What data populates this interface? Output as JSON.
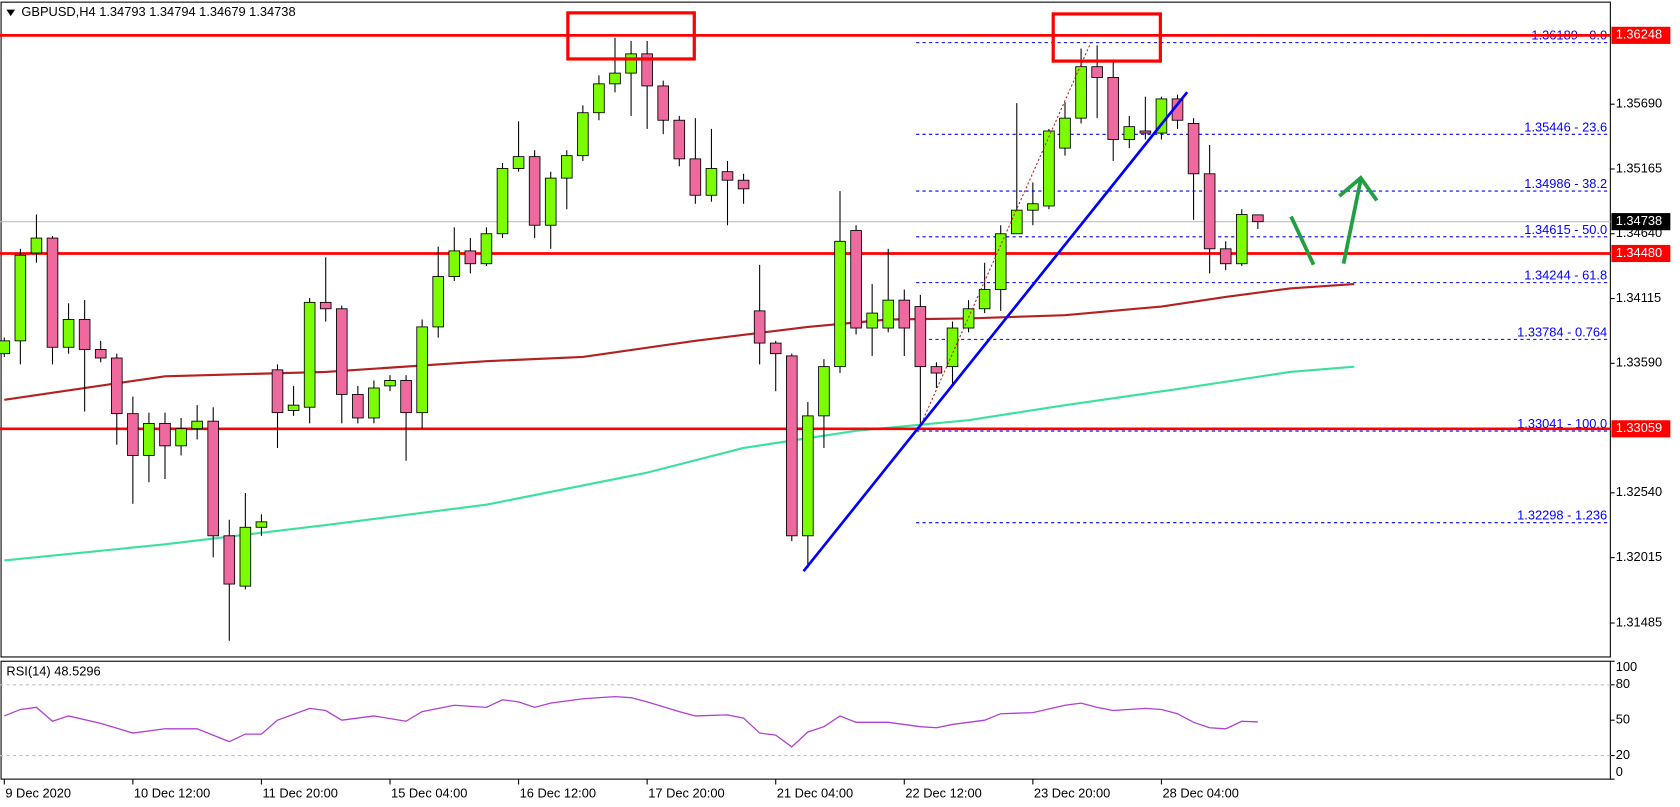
{
  "header": "GBPUSD,H4  1.34793 1.34794 1.34679 1.34738",
  "chart_data": [
    {
      "type": "candlestick",
      "categories": [
        "9 Dec 2020",
        null,
        null,
        null,
        null,
        null,
        null,
        null,
        "10 Dec 12:00",
        null,
        null,
        null,
        null,
        null,
        null,
        null,
        "11 Dec 20:00",
        null,
        null,
        null,
        null,
        null,
        null,
        null,
        "15 Dec 04:00",
        null,
        null,
        null,
        null,
        null,
        null,
        null,
        "16 Dec 12:00",
        null,
        null,
        null,
        null,
        null,
        null,
        null,
        "17 Dec 20:00",
        null,
        null,
        null,
        null,
        null,
        null,
        null,
        "21 Dec 04:00",
        null,
        null,
        null,
        null,
        null,
        null,
        null,
        "22 Dec 12:00",
        null,
        null,
        null,
        null,
        null,
        null,
        null,
        "23 Dec 20:00",
        null,
        null,
        null,
        null,
        null,
        null,
        null,
        "28 Dec 04:00",
        null,
        null,
        null,
        null,
        null,
        null
      ],
      "open": [
        1.33668,
        1.33772,
        1.34484,
        1.34605,
        1.3372,
        1.33945,
        1.33702,
        1.33633,
        1.33182,
        1.32843,
        1.33103,
        1.32921,
        1.3306,
        1.33121,
        1.32192,
        1.31784,
        1.32261,
        1.33537,
        1.33208,
        1.33234,
        1.34084,
        1.34032,
        1.33338,
        1.33147,
        1.33407,
        1.33451,
        1.3319,
        1.33885,
        1.34293,
        1.34501,
        1.34397,
        1.3464,
        1.35169,
        1.35265,
        1.34709,
        1.35091,
        1.35273,
        1.35621,
        1.35855,
        1.35942,
        1.36098,
        1.35838,
        1.3556,
        1.35247,
        1.34952,
        1.35143,
        1.35074,
        1.34015,
        1.33754,
        1.3365,
        1.32192,
        1.33164,
        1.33563,
        1.34666,
        1.33876,
        1.33876,
        1.34102,
        1.3405,
        1.33563,
        1.33563,
        1.33876,
        1.34032,
        1.34188,
        1.3464,
        1.34831,
        1.34865,
        1.35334,
        1.35577,
        1.35994,
        1.35907,
        1.35404,
        1.35473,
        1.35456,
        1.35733,
        1.35534,
        1.35126,
        1.34518,
        1.34397,
        1.34793
      ],
      "high": [
        1.33798,
        1.34518,
        1.34796,
        1.34622,
        1.34076,
        1.34102,
        1.33772,
        1.33668,
        1.3332,
        1.3319,
        1.3319,
        1.33147,
        1.33251,
        1.33234,
        1.32322,
        1.32539,
        1.32366,
        1.33581,
        1.33407,
        1.34119,
        1.34449,
        1.34058,
        1.33407,
        1.33451,
        1.33494,
        1.33494,
        1.33945,
        1.34536,
        1.34692,
        1.34605,
        1.34692,
        1.35213,
        1.35551,
        1.35317,
        1.35143,
        1.35317,
        1.35681,
        1.35924,
        1.36228,
        1.36202,
        1.36202,
        1.35881,
        1.35595,
        1.35577,
        1.3549,
        1.3523,
        1.35126,
        1.34388,
        1.33772,
        1.33668,
        1.33277,
        1.33624,
        1.34987,
        1.34709,
        1.34232,
        1.34518,
        1.34188,
        1.34145,
        1.33598,
        1.33928,
        1.34102,
        1.34405,
        1.34709,
        1.35699,
        1.35056,
        1.3549,
        1.35707,
        1.36141,
        1.36167,
        1.36029,
        1.35595,
        1.35751,
        1.35751,
        1.35768,
        1.35577,
        1.3536,
        1.34579,
        1.34839,
        1.34794
      ],
      "low": [
        1.33642,
        1.33581,
        1.34405,
        1.33581,
        1.33668,
        1.33199,
        1.33598,
        1.3293,
        1.32452,
        1.32626,
        1.32652,
        1.32843,
        1.32973,
        1.32018,
        1.31341,
        1.31758,
        1.32192,
        1.32904,
        1.33164,
        1.33103,
        1.33928,
        1.33103,
        1.33103,
        1.33103,
        1.33364,
        1.328,
        1.3306,
        1.33798,
        1.34258,
        1.34319,
        1.34379,
        1.34605,
        1.35143,
        1.34605,
        1.34518,
        1.34839,
        1.3523,
        1.3556,
        1.35786,
        1.35595,
        1.3549,
        1.35447,
        1.35187,
        1.34883,
        1.349,
        1.34709,
        1.34883,
        1.33581,
        1.33364,
        1.32149,
        1.31932,
        1.32904,
        1.33511,
        1.33824,
        1.3365,
        1.33841,
        1.3365,
        1.33103,
        1.3339,
        1.33407,
        1.33841,
        1.33997,
        1.34015,
        1.3464,
        1.34709,
        1.34839,
        1.35273,
        1.35534,
        1.35577,
        1.3523,
        1.35334,
        1.35404,
        1.35404,
        1.3549,
        1.34753,
        1.34319,
        1.34345,
        1.34379,
        1.34679
      ],
      "close": [
        1.33772,
        1.34466,
        1.34605,
        1.3372,
        1.33945,
        1.33702,
        1.33633,
        1.33182,
        1.32843,
        1.33103,
        1.32921,
        1.3306,
        1.33121,
        1.32192,
        1.31801,
        1.32261,
        1.32305,
        1.3319,
        1.33251,
        1.34084,
        1.34032,
        1.33338,
        1.33147,
        1.3339,
        1.33451,
        1.3319,
        1.33885,
        1.34293,
        1.34501,
        1.34397,
        1.3464,
        1.35169,
        1.35265,
        1.34709,
        1.35091,
        1.35273,
        1.35621,
        1.35855,
        1.35942,
        1.36098,
        1.35838,
        1.3556,
        1.35247,
        1.34952,
        1.35169,
        1.35074,
        1.35004,
        1.33754,
        1.33668,
        1.32192,
        1.33164,
        1.33563,
        1.34579,
        1.33876,
        1.33997,
        1.34102,
        1.33876,
        1.33563,
        1.33511,
        1.33876,
        1.34032,
        1.34188,
        1.3464,
        1.34831,
        1.34883,
        1.35473,
        1.35577,
        1.35994,
        1.35907,
        1.35404,
        1.35508,
        1.35456,
        1.35733,
        1.3556,
        1.35126,
        1.34518,
        1.34397,
        1.34796,
        1.34738
      ],
      "up_color": "#7cfc00",
      "down_color": "#ee6a9e",
      "ylim": [
        1.3121,
        1.363
      ],
      "yticks": [
        {
          "value": 1.3569,
          "label": "1.35690"
        },
        1.35165,
        {
          "value": 1.3464,
          "label": "1.34640"
        },
        1.34115,
        {
          "value": 1.3359,
          "label": "1.33590"
        },
        {
          "value": 1.3254,
          "label": "1.32540"
        },
        1.32015,
        1.31485
      ],
      "hlines": [
        {
          "value": 1.36248,
          "color": "#ff0000"
        },
        {
          "value": 1.3448,
          "label": "1.34480",
          "color": "#ff0000"
        },
        {
          "value": 1.33059,
          "color": "#ff0000"
        }
      ],
      "current_price": {
        "value": 1.34738,
        "color": "#c0c0c0"
      },
      "fib_color": "#0000ff",
      "fib_levels": [
        {
          "value": 1.36189,
          "label": "1.36189 - 0.0"
        },
        {
          "value": 1.35446,
          "label": "1.35446 - 23.6"
        },
        {
          "value": 1.34986,
          "label": "1.34986 - 38.2"
        },
        {
          "value": 1.34615,
          "label": "1.34615 - 50.0"
        },
        {
          "value": 1.34244,
          "label": "1.34244 - 61.8"
        },
        {
          "value": 1.33784,
          "label": "1.33784 - 0.764"
        },
        {
          "value": 1.33041,
          "label": "1.33041 - 100.0"
        },
        {
          "value": 1.32298,
          "label": "1.32298 - 1.236"
        }
      ],
      "moving_averages": [
        {
          "color": "#b22222",
          "x": [
            0,
            10,
            20,
            30,
            36,
            43,
            50,
            55,
            60,
            66,
            72,
            76,
            80,
            84
          ],
          "values": [
            1.33294,
            1.33485,
            1.3352,
            1.33607,
            1.33642,
            1.33772,
            1.33885,
            1.33945,
            1.33954,
            1.3398,
            1.3405,
            1.34128,
            1.34197,
            1.34232
          ]
        },
        {
          "color": "#3ee0a0",
          "x": [
            0,
            10,
            20,
            30,
            40,
            46,
            53,
            60,
            66,
            73,
            80,
            84
          ],
          "values": [
            1.31992,
            1.32123,
            1.32279,
            1.32444,
            1.32704,
            1.32904,
            1.33043,
            1.33129,
            1.33251,
            1.33381,
            1.3352,
            1.33563
          ]
        }
      ]
    },
    {
      "type": "line",
      "title": "RSI(14) 48.5296",
      "color": "#b040d0",
      "x": [
        0,
        1,
        2,
        3,
        4,
        6,
        8,
        10,
        12,
        14,
        15,
        16,
        17,
        19,
        20,
        21,
        23,
        25,
        26,
        28,
        30,
        31,
        32,
        33,
        34,
        36,
        38,
        39,
        40,
        42,
        43,
        45,
        46,
        47,
        48,
        49,
        50,
        51,
        52,
        53,
        55,
        57,
        58,
        59,
        61,
        62,
        64,
        66,
        67,
        68,
        69,
        71,
        72,
        73,
        74,
        75,
        76,
        77,
        78
      ],
      "values": [
        53.6,
        59.1,
        60.9,
        49.1,
        53.6,
        47.3,
        39.1,
        42.7,
        42.7,
        31.8,
        38.2,
        38.2,
        50.0,
        60.0,
        58.2,
        50.0,
        53.6,
        49.1,
        57.3,
        62.7,
        60.9,
        67.3,
        65.5,
        60.9,
        64.5,
        68.2,
        70.0,
        69.1,
        65.5,
        57.3,
        53.6,
        54.5,
        51.8,
        39.1,
        37.3,
        27.3,
        40.0,
        44.5,
        53.6,
        48.2,
        48.2,
        44.5,
        43.6,
        46.4,
        50.0,
        55.5,
        56.4,
        62.7,
        64.5,
        60.9,
        58.2,
        60.0,
        59.1,
        55.5,
        48.2,
        43.6,
        42.7,
        49.1,
        48.5296
      ],
      "ylim": [
        0,
        100
      ],
      "yticks": [
        0,
        20,
        50,
        80,
        100
      ],
      "levels": [
        20,
        80
      ]
    }
  ]
}
